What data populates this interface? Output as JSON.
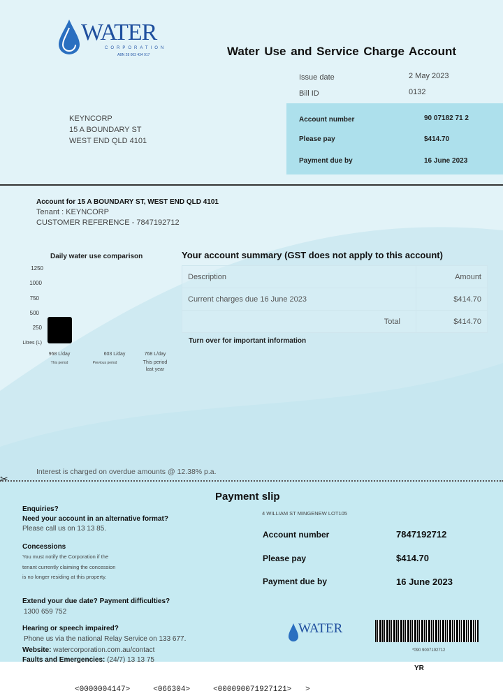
{
  "header": {
    "logo_text": "WATER",
    "logo_sub": "CORPORATION",
    "logo_abn": "ABN 28 003 434 917",
    "title": "Water Use and Service Charge Account",
    "issue_date_label": "Issue date",
    "issue_date": "2 May 2023",
    "bill_id_label": "Bill ID",
    "bill_id": "0132",
    "account_number_label": "Account number",
    "account_number": "90 07182 71 2",
    "please_pay_label": "Please pay",
    "please_pay": "$414.70",
    "due_label": "Payment due by",
    "due": "16 June 2023"
  },
  "recipient": {
    "line1": "KEYNCORP",
    "line2": "15 A BOUNDARY ST",
    "line3": "WEST END QLD 4101"
  },
  "account": {
    "heading": "Account for 15 A BOUNDARY ST, WEST END QLD 4101",
    "tenant": "Tenant : KEYNCORP",
    "reference": "CUSTOMER REFERENCE - 7847192712"
  },
  "chart_data": {
    "type": "bar",
    "title": "Daily water use comparison",
    "ylabel": "Litres (L)",
    "yticks": [
      "250",
      "500",
      "750",
      "1000",
      "1250"
    ],
    "ylim": [
      0,
      1250
    ],
    "categories": [
      "This period",
      "Previous period",
      "This period last year"
    ],
    "value_labels": [
      "968 L/day",
      "603 L/day",
      "768 L/day"
    ],
    "values": [
      968,
      603,
      768
    ]
  },
  "summary": {
    "title": "Your account summary (GST does not apply to this account)",
    "col_desc": "Description",
    "col_amount": "Amount",
    "rows": [
      {
        "desc": "Current charges due 16 June 2023",
        "amount": "$414.70"
      }
    ],
    "total_label": "Total",
    "total": "$414.70",
    "turn_over": "Turn over for important information"
  },
  "interest": "Interest is charged on overdue amounts @ 12.38% p.a.",
  "slip": {
    "title": "Payment slip",
    "enq_h1": "Enquiries?",
    "enq_h2": "Need your account in an alternative format?",
    "enq_t": "Please call us on 13 13 85.",
    "con_h": "Concessions",
    "con_t1": "You must notify the Corporation if the",
    "con_t2": "tenant currently claiming the concession",
    "con_t3": "is no longer residing at this property.",
    "ext_h": "Extend your due date? Payment difficulties?",
    "ext_t": "1300 659 752",
    "hear_h": "Hearing or speech impaired?",
    "hear_t": "Phone us via the national Relay Service on 133 677.",
    "web_l": "Website:",
    "web_t": "watercorporation.com.au/contact",
    "fault_l": "Faults and Emergencies:",
    "fault_t": "(24/7) 13 13 75",
    "address": "4 WILLIAM ST MINGENEW LOT105",
    "account_number_label": "Account number",
    "account_number": "7847192712",
    "please_pay_label": "Please pay",
    "please_pay": "$414.70",
    "due_label": "Payment due by",
    "due": "16 June 2023",
    "barcode_text": "*090 9007192712",
    "code": "YR"
  },
  "micr": [
    "<0000004147>",
    "<066304>",
    "<000090071927121>",
    ">"
  ]
}
